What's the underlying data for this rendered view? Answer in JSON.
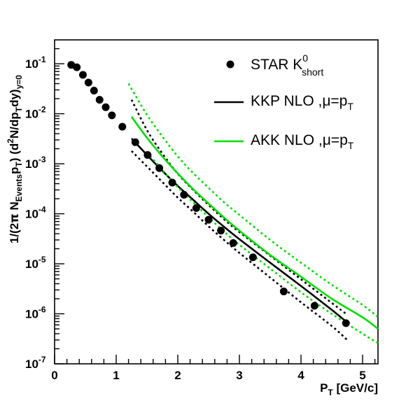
{
  "chart_data": {
    "type": "scatter",
    "xlabel": {
      "main": "P",
      "sub": "T",
      "rest": " [GeV/c]"
    },
    "ylabel": "1/(2π N_Events p_T) (d²N/dp_T dy)_y=0",
    "xlim": [
      0,
      5.25
    ],
    "ylim": [
      1e-07,
      0.3
    ],
    "yscale": "log",
    "grid": false,
    "legend_position": "top-right",
    "x_ticks": [
      "0",
      "1",
      "2",
      "3",
      "4",
      "5"
    ],
    "y_ticks": [
      {
        "base": "10",
        "exp": "-7"
      },
      {
        "base": "10",
        "exp": "-6"
      },
      {
        "base": "10",
        "exp": "-5"
      },
      {
        "base": "10",
        "exp": "-4"
      },
      {
        "base": "10",
        "exp": "-3"
      },
      {
        "base": "10",
        "exp": "-2"
      },
      {
        "base": "10",
        "exp": "-1"
      }
    ],
    "legend": [
      {
        "label": "STAR K",
        "sup": "0",
        "sub": "short",
        "marker": "circle",
        "color": "#000000"
      },
      {
        "label": "KKP NLO ,μ=p",
        "sub": "T",
        "marker": "line",
        "color": "#000000"
      },
      {
        "label": "AKK NLO ,μ=p",
        "sub": "T",
        "marker": "line",
        "color": "#00dd00"
      }
    ],
    "series": [
      {
        "name": "STAR K0short",
        "kind": "points",
        "color": "#000000",
        "x": [
          0.27,
          0.36,
          0.46,
          0.55,
          0.64,
          0.73,
          0.83,
          0.93,
          1.1,
          1.31,
          1.51,
          1.7,
          1.91,
          2.1,
          2.3,
          2.5,
          2.7,
          2.9,
          3.22,
          3.72,
          4.22,
          4.73
        ],
        "y": [
          0.095,
          0.085,
          0.06,
          0.042,
          0.029,
          0.019,
          0.0135,
          0.0093,
          0.0055,
          0.0027,
          0.0015,
          0.00082,
          0.00042,
          0.00024,
          0.00013,
          7.6e-05,
          4.6e-05,
          2.6e-05,
          1.35e-05,
          2.8e-06,
          1.45e-06,
          6.5e-07
        ]
      },
      {
        "name": "KKP NLO",
        "kind": "curve",
        "color": "#000000",
        "dash": "solid",
        "x": [
          1.25,
          1.5,
          1.75,
          2.0,
          2.25,
          2.5,
          2.75,
          3.0,
          3.5,
          4.0,
          4.5,
          4.75
        ],
        "y": [
          0.0032,
          0.0015,
          0.00072,
          0.00036,
          0.00019,
          0.0001,
          5.5e-05,
          3.1e-05,
          1.05e-05,
          3.6e-06,
          1.2e-06,
          6.7e-07
        ]
      },
      {
        "name": "KKP NLO upper",
        "kind": "curve",
        "color": "#000000",
        "dash": "dotted",
        "x": [
          1.25,
          1.5,
          1.75,
          2.0,
          2.25,
          2.5,
          2.75,
          3.0,
          3.5,
          4.0,
          4.5,
          4.75
        ],
        "y": [
          0.019,
          0.0047,
          0.0016,
          0.00063,
          0.0003,
          0.00015,
          7.8e-05,
          4.3e-05,
          1.45e-05,
          4.9e-06,
          1.65e-06,
          9.6e-07
        ]
      },
      {
        "name": "KKP NLO lower",
        "kind": "curve",
        "color": "#000000",
        "dash": "dotted",
        "x": [
          1.25,
          1.5,
          1.75,
          2.0,
          2.25,
          2.5,
          2.75,
          3.0,
          3.5,
          4.0,
          4.5,
          4.75
        ],
        "y": [
          0.0018,
          0.00088,
          0.00043,
          0.00021,
          0.00011,
          5.6e-05,
          3e-05,
          1.65e-05,
          5.3e-06,
          1.7e-06,
          5.7e-07,
          3e-07
        ]
      },
      {
        "name": "AKK NLO",
        "kind": "curve",
        "color": "#00dd00",
        "dash": "solid",
        "x": [
          1.25,
          1.5,
          1.75,
          2.0,
          2.25,
          2.5,
          2.75,
          3.0,
          3.5,
          4.0,
          4.5,
          5.0,
          5.25
        ],
        "y": [
          0.0087,
          0.0033,
          0.0014,
          0.00064,
          0.00031,
          0.00016,
          8.4e-05,
          4.6e-05,
          1.5e-05,
          5.5e-06,
          2e-06,
          8.5e-07,
          5e-07
        ]
      },
      {
        "name": "AKK NLO upper",
        "kind": "curve",
        "color": "#00dd00",
        "dash": "dotted",
        "x": [
          1.2,
          1.5,
          1.75,
          2.0,
          2.25,
          2.5,
          2.75,
          3.0,
          3.5,
          4.0,
          4.5,
          5.0,
          5.25
        ],
        "y": [
          0.04,
          0.0095,
          0.0035,
          0.0014,
          0.00065,
          0.00033,
          0.00017,
          9.5e-05,
          3e-05,
          1.05e-05,
          3.8e-06,
          1.5e-06,
          8.6e-07
        ]
      },
      {
        "name": "AKK NLO lower",
        "kind": "curve",
        "color": "#00dd00",
        "dash": "dotted",
        "x": [
          1.5,
          1.75,
          2.0,
          2.25,
          2.5,
          2.75,
          3.0,
          3.5,
          4.0,
          4.5,
          5.0,
          5.25
        ],
        "y": [
          0.0017,
          0.00075,
          0.00034,
          0.00017,
          8.5e-05,
          4.4e-05,
          2.4e-05,
          8e-06,
          2.7e-06,
          1e-06,
          4e-07,
          2.6e-07
        ]
      }
    ]
  }
}
